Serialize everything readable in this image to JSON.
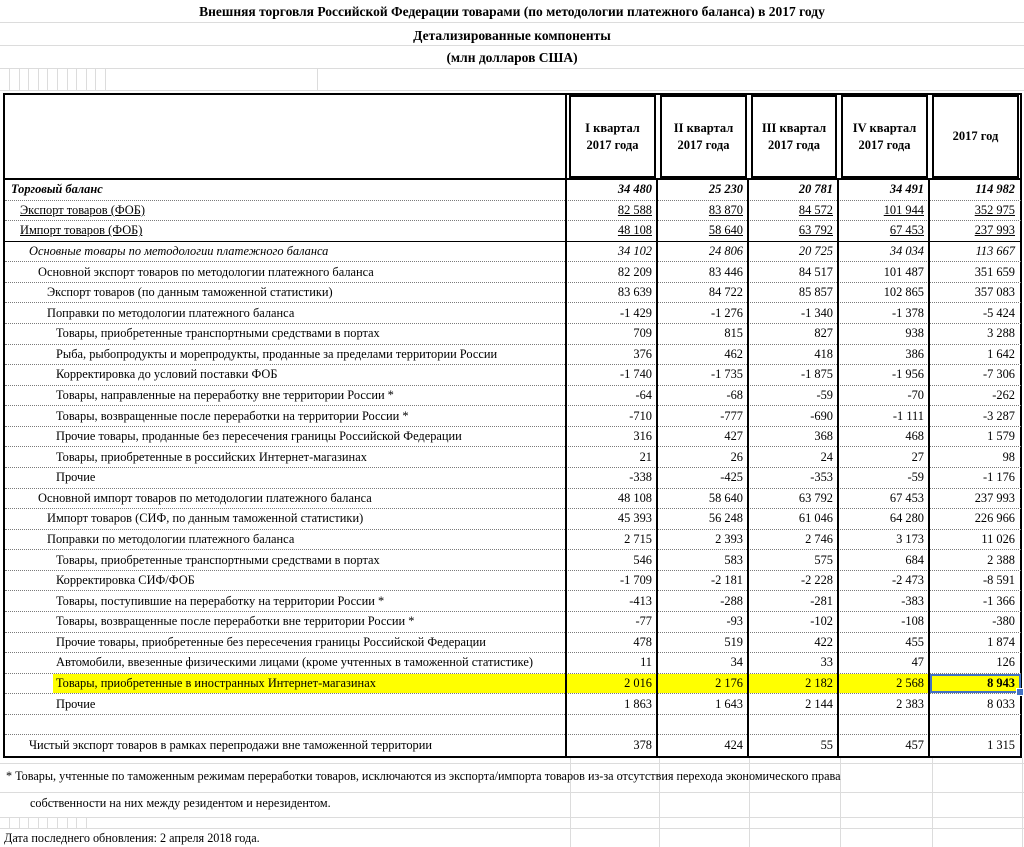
{
  "sheet": {
    "title": "Внешняя торговля Российской Федерации товарами (по методологии платежного баланса) в 2017 году",
    "subtitle": "Детализированные компоненты",
    "units": "(млн  долларов США)",
    "footnote_line1": "* Товары, учтенные по таможенным режимам переработки товаров, исключаются из экспорта/импорта товаров из-за отсутствия перехода экономического права",
    "footnote_line2": "собственности на них между резидентом и нерезидентом.",
    "last_updated": "Дата последнего обновления: 2 апреля 2018 года."
  },
  "table": {
    "column_headers": [
      "I квартал 2017 года",
      "II квартал 2017 года",
      "III квартал 2017 года",
      "IV квартал 2017 года",
      "2017 год"
    ],
    "highlight_color": "#FFFF00",
    "selection_color": "#4472C4",
    "selected_cell": {
      "row_label": "Товары, приобретенные в иностранных Интернет-магазинах",
      "column": "2017 год",
      "value": "8 943"
    },
    "rows": [
      {
        "label": "Торговый баланс",
        "indent": 0,
        "style": "bold-italic",
        "values": [
          "34 480",
          "25 230",
          "20 781",
          "34 491",
          "114 982"
        ]
      },
      {
        "label": "Экспорт товаров (ФОБ)",
        "indent": 1,
        "style": "underline",
        "values": [
          "82 588",
          "83 870",
          "84 572",
          "101 944",
          "352 975"
        ]
      },
      {
        "label": "Импорт товаров (ФОБ)",
        "indent": 1,
        "style": "underline",
        "solid_bottom": true,
        "values": [
          "48 108",
          "58 640",
          "63 792",
          "67 453",
          "237 993"
        ]
      },
      {
        "label": "Основные товары по методологии платежного баланса",
        "indent": 2,
        "style": "italic",
        "values": [
          "34 102",
          "24 806",
          "20 725",
          "34 034",
          "113 667"
        ]
      },
      {
        "label": "Основной экспорт товаров по методологии платежного баланса",
        "indent": 3,
        "style": "normal",
        "values": [
          "82 209",
          "83 446",
          "84 517",
          "101 487",
          "351 659"
        ]
      },
      {
        "label": "Экспорт товаров (по данным таможенной статистики)",
        "indent": 4,
        "style": "normal",
        "values": [
          "83 639",
          "84 722",
          "85 857",
          "102 865",
          "357 083"
        ]
      },
      {
        "label": "Поправки по методологии платежного баланса",
        "indent": 4,
        "style": "normal",
        "values": [
          "-1 429",
          "-1 276",
          "-1 340",
          "-1 378",
          "-5 424"
        ]
      },
      {
        "label": "Товары, приобретенные транспортными средствами в портах",
        "indent": 5,
        "style": "normal",
        "values": [
          "709",
          "815",
          "827",
          "938",
          "3 288"
        ]
      },
      {
        "label": "Рыба, рыбопродукты и морепродукты, проданные за пределами территории России",
        "indent": 5,
        "style": "normal",
        "values": [
          "376",
          "462",
          "418",
          "386",
          "1 642"
        ]
      },
      {
        "label": "Корректировка до условий поставки ФОБ",
        "indent": 5,
        "style": "normal",
        "values": [
          "-1 740",
          "-1 735",
          "-1 875",
          "-1 956",
          "-7 306"
        ]
      },
      {
        "label": "Товары, направленные на переработку вне территории России *",
        "indent": 5,
        "style": "normal",
        "values": [
          "-64",
          "-68",
          "-59",
          "-70",
          "-262"
        ]
      },
      {
        "label": "Товары, возвращенные после переработки на территории России *",
        "indent": 5,
        "style": "normal",
        "values": [
          "-710",
          "-777",
          "-690",
          "-1 111",
          "-3 287"
        ]
      },
      {
        "label": "Прочие товары, проданные без пересечения границы Российской Федерации",
        "indent": 5,
        "style": "normal",
        "values": [
          "316",
          "427",
          "368",
          "468",
          "1 579"
        ]
      },
      {
        "label": "Товары, приобретенные в российских Интернет-магазинах",
        "indent": 5,
        "style": "normal",
        "values": [
          "21",
          "26",
          "24",
          "27",
          "98"
        ]
      },
      {
        "label": "Прочие",
        "indent": 5,
        "style": "normal",
        "values": [
          "-338",
          "-425",
          "-353",
          "-59",
          "-1 176"
        ]
      },
      {
        "label": "Основной импорт товаров по методологии платежного баланса",
        "indent": 3,
        "style": "normal",
        "values": [
          "48 108",
          "58 640",
          "63 792",
          "67 453",
          "237 993"
        ]
      },
      {
        "label": "Импорт товаров (СИФ, по данным таможенной статистики)",
        "indent": 4,
        "style": "normal",
        "values": [
          "45 393",
          "56 248",
          "61 046",
          "64 280",
          "226 966"
        ]
      },
      {
        "label": "Поправки по методологии платежного баланса",
        "indent": 4,
        "style": "normal",
        "values": [
          "2 715",
          "2 393",
          "2 746",
          "3 173",
          "11 026"
        ]
      },
      {
        "label": "Товары, приобретенные транспортными средствами в портах",
        "indent": 5,
        "style": "normal",
        "values": [
          "546",
          "583",
          "575",
          "684",
          "2 388"
        ]
      },
      {
        "label": "Корректировка СИФ/ФОБ",
        "indent": 5,
        "style": "normal",
        "values": [
          "-1 709",
          "-2 181",
          "-2 228",
          "-2 473",
          "-8 591"
        ]
      },
      {
        "label": "Товары, поступившие на переработку на территории России *",
        "indent": 5,
        "style": "normal",
        "values": [
          "-413",
          "-288",
          "-281",
          "-383",
          "-1 366"
        ]
      },
      {
        "label": "Товары, возвращенные после переработки вне территории России *",
        "indent": 5,
        "style": "normal",
        "values": [
          "-77",
          "-93",
          "-102",
          "-108",
          "-380"
        ]
      },
      {
        "label": "Прочие товары, приобретенные без пересечения границы Российской Федерации",
        "indent": 5,
        "style": "normal",
        "values": [
          "478",
          "519",
          "422",
          "455",
          "1 874"
        ]
      },
      {
        "label": "Автомобили, ввезенные физическими лицами (кроме учтенных в таможенной статистике)",
        "indent": 5,
        "style": "normal",
        "values": [
          "11",
          "34",
          "33",
          "47",
          "126"
        ]
      },
      {
        "label": "Товары, приобретенные в иностранных Интернет-магазинах",
        "indent": 5,
        "style": "normal",
        "highlight": true,
        "selected_col": 4,
        "values": [
          "2 016",
          "2 176",
          "2 182",
          "2 568",
          "8 943"
        ]
      },
      {
        "label": "Прочие",
        "indent": 5,
        "style": "normal",
        "values": [
          "1 863",
          "1 643",
          "2 144",
          "2 383",
          "8 033"
        ]
      },
      {
        "label": "",
        "indent": 0,
        "style": "normal",
        "values": [
          "",
          "",
          "",
          "",
          ""
        ]
      },
      {
        "label": "Чистый экспорт товаров в рамках перепродажи вне таможенной территории",
        "indent": 2,
        "style": "normal",
        "values": [
          "378",
          "424",
          "55",
          "457",
          "1 315"
        ]
      }
    ]
  }
}
